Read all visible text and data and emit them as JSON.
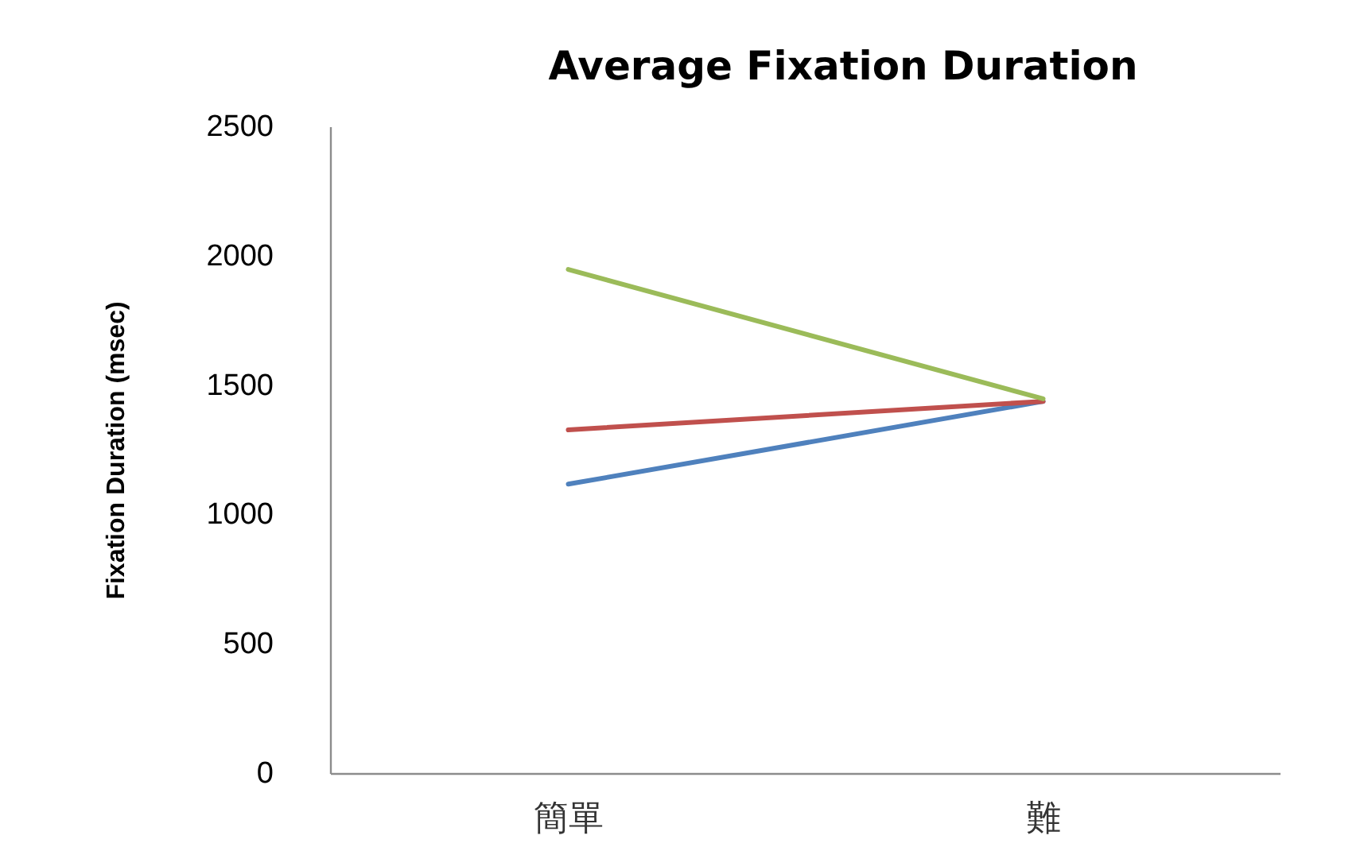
{
  "chart_data": {
    "type": "line",
    "title": "Average Fixation Duration",
    "ylabel": "Fixation Duration (msec)",
    "categories": [
      "簡單",
      "難"
    ],
    "series": [
      {
        "color": "#4f81bd",
        "values": [
          1120,
          1440
        ]
      },
      {
        "color": "#c0504d",
        "values": [
          1330,
          1440
        ]
      },
      {
        "color": "#9bbb59",
        "values": [
          1950,
          1450
        ]
      }
    ],
    "ylim": [
      0,
      2500
    ],
    "yticks": [
      0,
      500,
      1000,
      1500,
      2000,
      2500
    ],
    "grid": false,
    "marker": "none",
    "line_style": "solid"
  }
}
